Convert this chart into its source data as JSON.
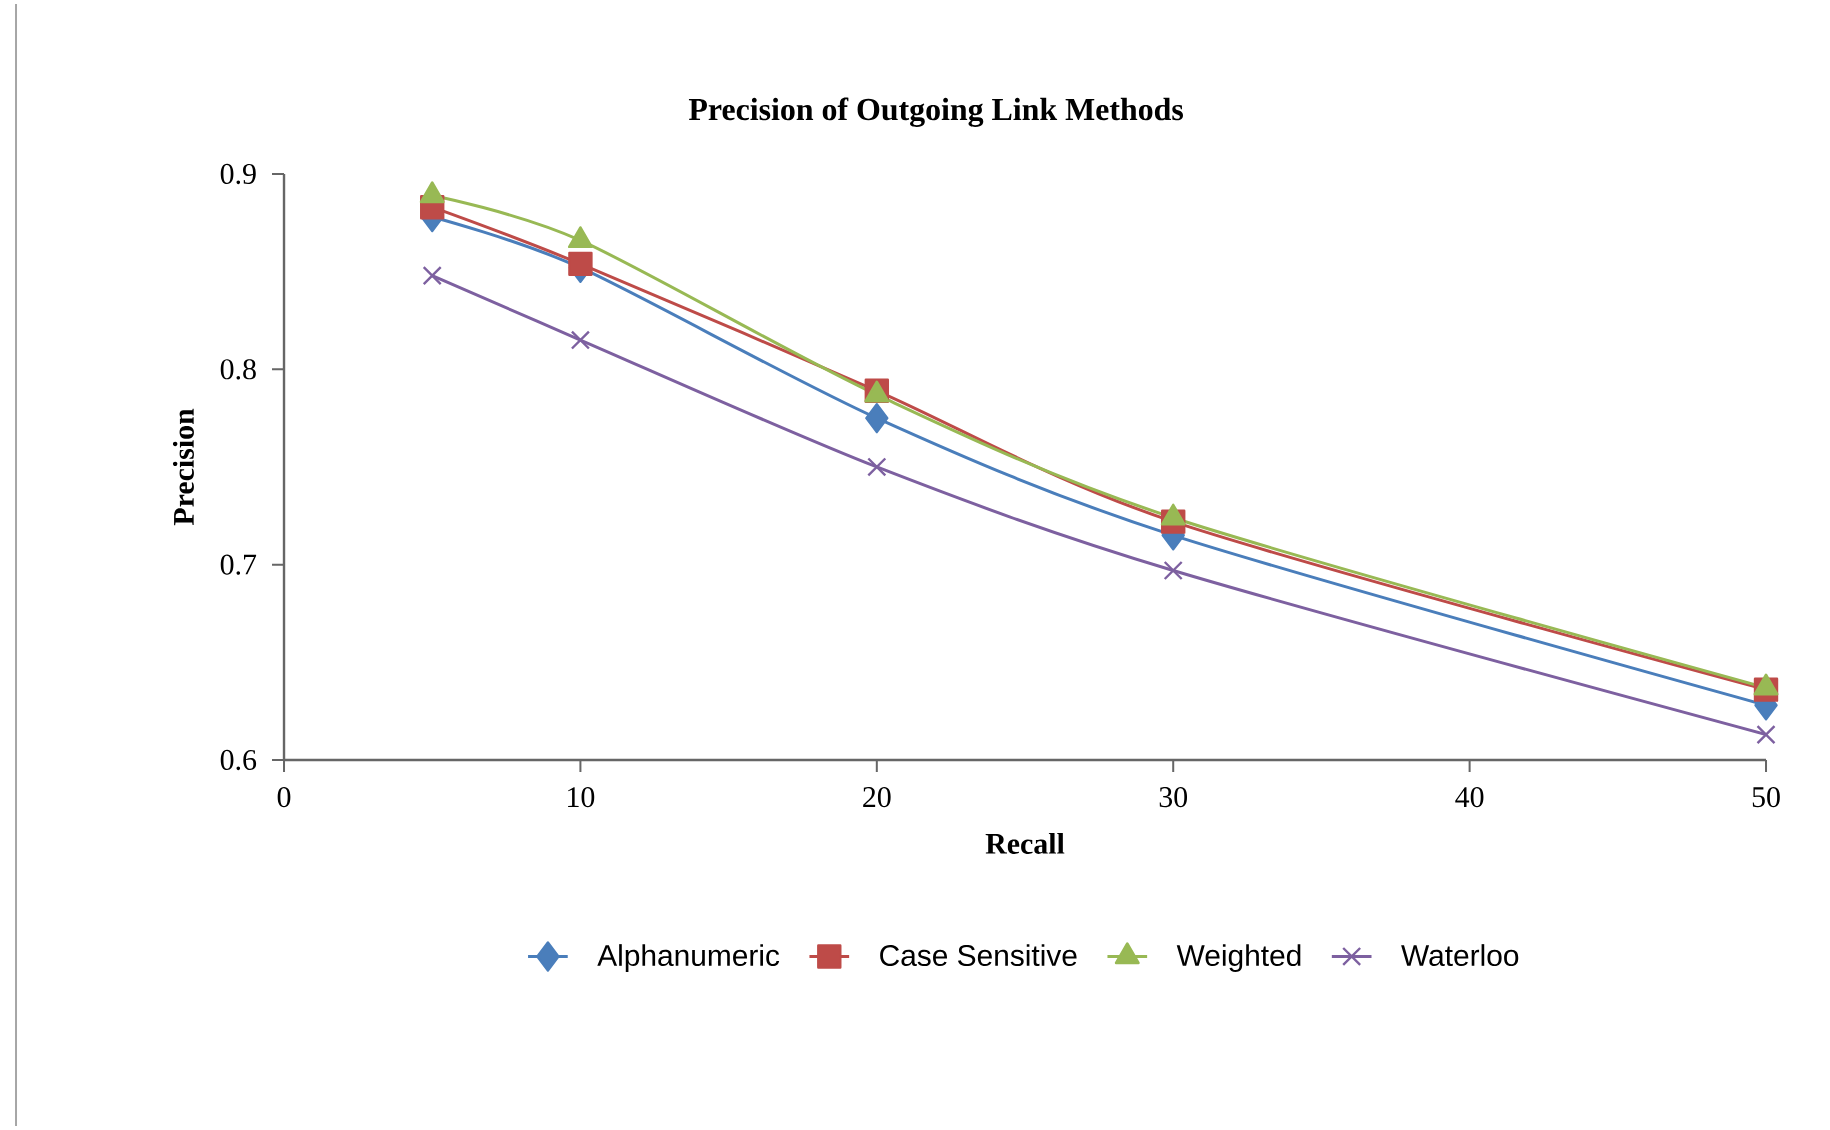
{
  "chart_data": {
    "type": "line",
    "title": "Precision of Outgoing Link Methods",
    "xlabel": "Recall",
    "ylabel": "Precision",
    "x": [
      5,
      10,
      20,
      30,
      50
    ],
    "xlim": [
      0,
      50
    ],
    "xticks": [
      0,
      10,
      20,
      30,
      40,
      50
    ],
    "ylim": [
      0.6,
      0.9
    ],
    "yticks": [
      0.6,
      0.7,
      0.8,
      0.9
    ],
    "grid": false,
    "legend": "bottom",
    "line_style": "solid",
    "series": [
      {
        "name": "Alphanumeric",
        "color": "#4a7ebb",
        "marker": "diamond",
        "values": [
          0.878,
          0.852,
          0.775,
          0.715,
          0.628
        ]
      },
      {
        "name": "Case Sensitive",
        "color": "#be4b48",
        "marker": "square",
        "values": [
          0.883,
          0.854,
          0.789,
          0.722,
          0.636
        ]
      },
      {
        "name": "Weighted",
        "color": "#98b954",
        "marker": "triangle",
        "values": [
          0.889,
          0.866,
          0.787,
          0.724,
          0.637
        ]
      },
      {
        "name": "Waterloo",
        "color": "#7d60a0",
        "marker": "cross",
        "values": [
          0.848,
          0.815,
          0.75,
          0.697,
          0.613
        ]
      }
    ]
  }
}
